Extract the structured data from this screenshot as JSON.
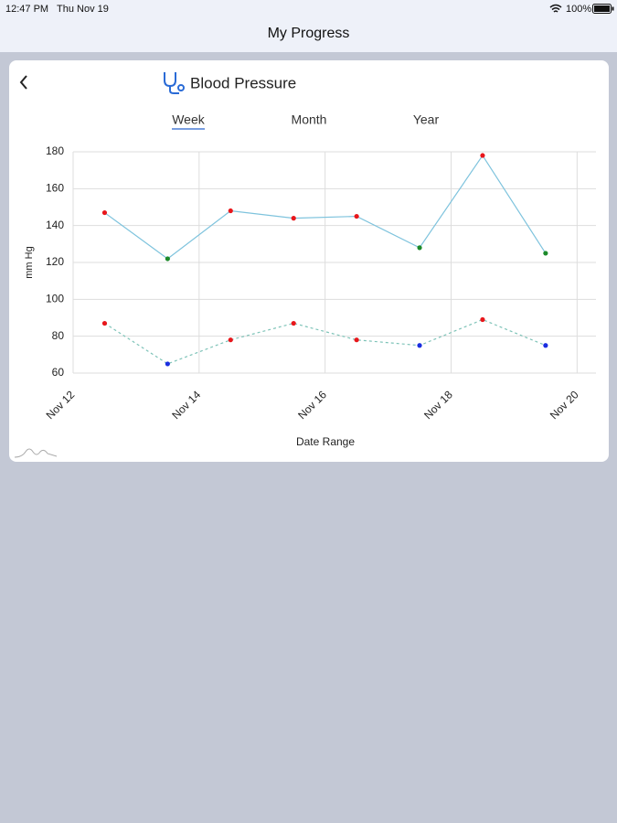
{
  "status_bar": {
    "time": "12:47 PM",
    "date": "Thu Nov 19",
    "battery": "100%"
  },
  "header": {
    "title": "My Progress"
  },
  "card": {
    "title": "Blood Pressure",
    "tabs": [
      "Week",
      "Month",
      "Year"
    ],
    "selected_tab": 0
  },
  "chart_data": {
    "type": "line",
    "x_label": "Date Range",
    "y_label": "mm Hg",
    "x": [
      12.5,
      13.5,
      14.5,
      15.5,
      16.5,
      17.5,
      18.5,
      19.5
    ],
    "xlim": [
      12,
      20.3
    ],
    "xticks": [
      {
        "value": 12,
        "label": "Nov 12"
      },
      {
        "value": 14,
        "label": "Nov 14"
      },
      {
        "value": 16,
        "label": "Nov 16"
      },
      {
        "value": 18,
        "label": "Nov 18"
      },
      {
        "value": 20,
        "label": "Nov 20"
      }
    ],
    "ylim": [
      60,
      180
    ],
    "yticks": [
      60,
      80,
      100,
      120,
      140,
      160,
      180
    ],
    "grid": true,
    "series": [
      {
        "color": "#7ec3dd",
        "dashed": false,
        "values": [
          147,
          122,
          148,
          144,
          145,
          128,
          178,
          125
        ],
        "point_colors": [
          "#e8161b",
          "#1c8a2a",
          "#e8161b",
          "#e8161b",
          "#e8161b",
          "#1c8a2a",
          "#e8161b",
          "#1c8a2a"
        ]
      },
      {
        "color": "#7ec3b8",
        "dashed": true,
        "values": [
          87,
          65,
          78,
          87,
          78,
          75,
          89,
          75
        ],
        "point_colors": [
          "#e8161b",
          "#1a2ee0",
          "#e8161b",
          "#e8161b",
          "#e8161b",
          "#1a2ee0",
          "#e8161b",
          "#1a2ee0"
        ]
      }
    ]
  }
}
